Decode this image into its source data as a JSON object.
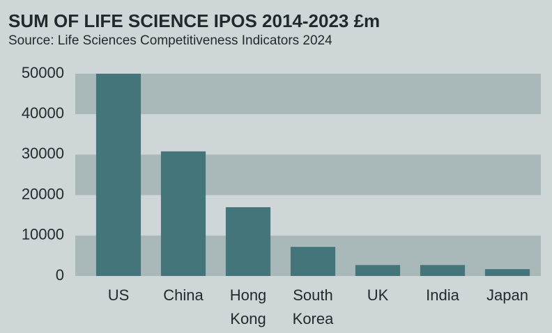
{
  "chart_data": {
    "type": "bar",
    "title": "SUM OF LIFE SCIENCE IPOS 2014-2023 £m",
    "subtitle": "Source: Life Sciences Competitiveness Indicators 2024",
    "categories": [
      "US",
      "China",
      "Hong Kong",
      "South Korea",
      "UK",
      "India",
      "Japan"
    ],
    "values": [
      50000,
      30800,
      17000,
      7200,
      2700,
      2700,
      1700
    ],
    "color": "#44757a",
    "ylim": [
      0,
      50000
    ],
    "yticks": [
      0,
      10000,
      20000,
      30000,
      40000,
      50000
    ],
    "grid": "bands",
    "grid_color": "#a9b8b8"
  }
}
